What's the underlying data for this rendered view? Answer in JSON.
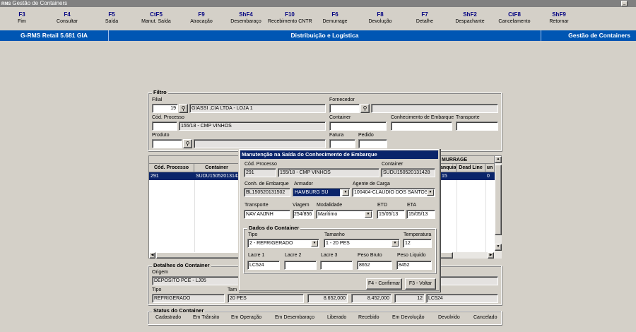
{
  "window": {
    "title": "Gestão de Containers",
    "logo": "RMS"
  },
  "toolbar": [
    {
      "key": "F3",
      "label": "Fim"
    },
    {
      "key": "F4",
      "label": "Consultar"
    },
    {
      "key": "F5",
      "label": "Saída"
    },
    {
      "key": "CtF5",
      "label": "Manut. Saída"
    },
    {
      "key": "F9",
      "label": "Atracação"
    },
    {
      "key": "ShF4",
      "label": "Desembaraço"
    },
    {
      "key": "F10",
      "label": "Recebimento CNTR"
    },
    {
      "key": "F6",
      "label": "Demurrage"
    },
    {
      "key": "F8",
      "label": "Devolução"
    },
    {
      "key": "F7",
      "label": "Detalhe"
    },
    {
      "key": "ShF2",
      "label": "Despachante"
    },
    {
      "key": "CtF8",
      "label": "Cancelamento"
    },
    {
      "key": "ShF9",
      "label": "Retornar"
    }
  ],
  "bluebar": {
    "left": "G-RMS Retail 5.681 GIA",
    "center": "Distribuição e Logística",
    "right": "Gestão de Containers"
  },
  "filtro": {
    "title": "Filtro",
    "filial_label": "Filial",
    "filial_code": "19",
    "filial_name": "GIASSI ,CIA LTDA - LOJA 1",
    "fornecedor_label": "Fornecedor",
    "fornecedor_code": "",
    "fornecedor_name": "",
    "processo_label": "Cód. Processo",
    "processo_code": "",
    "processo_name": "155/18 - CMP VINHOS",
    "container_label": "Container",
    "container": "",
    "conhecimento_label": "Conhecimento de Embarque",
    "conhecimento": "",
    "transporte_label": "Transporte",
    "transporte": "",
    "produto_label": "Produto",
    "produto_code": "",
    "produto_name": "",
    "fatura_label": "Fatura",
    "fatura": "",
    "pedido_label": "Pedido",
    "pedido": ""
  },
  "grid": {
    "group_header": "MURRAGE",
    "columns": [
      "Cód. Processo",
      "Container",
      "anquia",
      "Dead Line",
      "un"
    ],
    "rows": [
      {
        "processo": "291",
        "container": "SUDU150520131428",
        "franquia": "15",
        "deadline": "",
        "un": "0"
      }
    ]
  },
  "dialog": {
    "title": "Manutenção na Saída do Conhecimento de Embarque",
    "processo_label": "Cód. Processo",
    "processo_code": "291",
    "processo_name": "155/18 - CMP VINHOS",
    "container_label": "Container",
    "container": "SUDU150520131428",
    "conh_label": "Conh. de Embarque",
    "conh": "BL150520131502",
    "armador_label": "Armador",
    "armador": "HAMBURG SU",
    "agente_label": "Agente de Carga",
    "agente": "100404-CLAUDIO DOS SANTOS",
    "transporte_label": "Transporte",
    "transporte": "NAV ANJNH",
    "viagem_label": "Viagem",
    "viagem": "254/856",
    "modalidade_label": "Modalidade",
    "modalidade": "Marítimo",
    "etd_label": "ETD",
    "etd": "15/05/13",
    "eta_label": "ETA",
    "eta": "15/05/13",
    "dados": {
      "title": "Dados do Container",
      "tipo_label": "Tipo",
      "tipo": "2 - REFRIGERADO",
      "tamanho_label": "Tamanho",
      "tamanho": "1 - 20 PES",
      "temp_label": "Temperatura",
      "temp": "12",
      "lacre1_label": "Lacre 1",
      "lacre1": "LC524",
      "lacre2_label": "Lacre 2",
      "lacre2": "",
      "lacre3_label": "Lacre 3",
      "lacre3": "",
      "bruto_label": "Peso Bruto",
      "bruto": "8652",
      "liquido_label": "Peso Liquido",
      "liquido": "8452"
    },
    "confirm": "F4 - Confirmar",
    "back": "F3 - Voltar"
  },
  "detalhes": {
    "title": "Detalhes do Container",
    "origem_label": "Origem",
    "origem": "DEPOSITO PCE - LJ05",
    "tipo_label": "Tipo",
    "tipo": "REFRIGERADO",
    "tamanho_label": "Tam",
    "tamanho": "20 PES",
    "peso_bruto": "8.652,000",
    "peso_liquido": "8.452,000",
    "temperatura": "12",
    "lacre": "LC524"
  },
  "status": {
    "title": "Status do Container",
    "items": [
      "Cadastrado",
      "Em Trânsito",
      "Em Operação",
      "Em Desembaraço",
      "Liberado",
      "Recebido",
      "Em Devolução",
      "Devolvido",
      "Cancelado"
    ]
  }
}
